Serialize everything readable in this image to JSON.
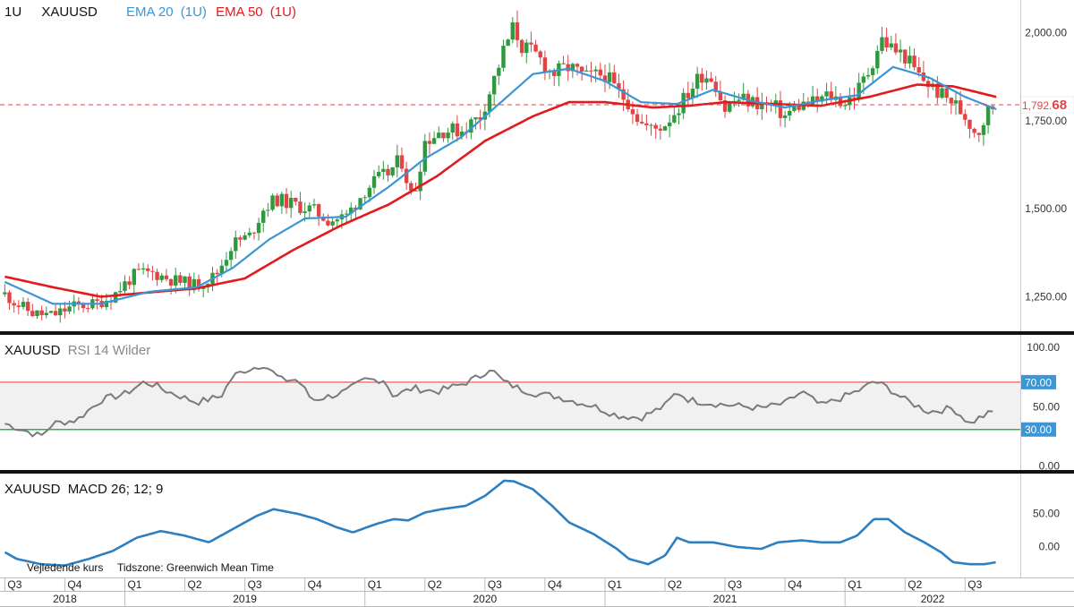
{
  "header": {
    "interval": "1U",
    "symbol": "XAUUSD",
    "ema20_label": "EMA 20",
    "ema20_interval": "(1U)",
    "ema50_label": "EMA 50",
    "ema50_interval": "(1U)"
  },
  "footer": {
    "price_note": "Vejledende kurs",
    "timezone_note": "Tidszone: Greenwich Mean Time"
  },
  "colors": {
    "up": "#2e9a3e",
    "down": "#e04444",
    "ema20": "#3a96d4",
    "ema50": "#e3191c",
    "rsi_line": "#7a7a7a",
    "rsi_overbought": "#e06060",
    "rsi_oversold": "#2bb24c",
    "macd_line": "#2e7fc0",
    "price_marker": "#e04444",
    "tag_blue": "#3a96d4"
  },
  "chart_data": [
    {
      "type": "candlestick",
      "name": "price",
      "title": "XAUUSD",
      "interval": "1U",
      "ylim": [
        1150,
        2090
      ],
      "yticks": [
        1250,
        1500,
        1750,
        2000
      ],
      "ytick_labels": [
        "1,250.00",
        "1,500.00",
        "1,750.00",
        "2,000.00"
      ],
      "last_price": 1792.68,
      "last_price_label_main": "1,792.",
      "last_price_label_frac": "68",
      "anchors": [
        [
          2018.5,
          1255
        ],
        [
          2018.55,
          1228
        ],
        [
          2018.62,
          1200
        ],
        [
          2018.7,
          1195
        ],
        [
          2018.78,
          1220
        ],
        [
          2018.88,
          1228
        ],
        [
          2018.95,
          1250
        ],
        [
          2019.0,
          1285
        ],
        [
          2019.05,
          1315
        ],
        [
          2019.12,
          1315
        ],
        [
          2019.2,
          1295
        ],
        [
          2019.3,
          1280
        ],
        [
          2019.38,
          1310
        ],
        [
          2019.45,
          1400
        ],
        [
          2019.52,
          1420
        ],
        [
          2019.58,
          1500
        ],
        [
          2019.63,
          1525
        ],
        [
          2019.7,
          1510
        ],
        [
          2019.78,
          1495
        ],
        [
          2019.85,
          1465
        ],
        [
          2019.92,
          1475
        ],
        [
          2020.0,
          1550
        ],
        [
          2020.05,
          1580
        ],
        [
          2020.1,
          1600
        ],
        [
          2020.15,
          1640
        ],
        [
          2020.2,
          1520
        ],
        [
          2020.25,
          1690
        ],
        [
          2020.32,
          1720
        ],
        [
          2020.4,
          1720
        ],
        [
          2020.48,
          1760
        ],
        [
          2020.52,
          1830
        ],
        [
          2020.58,
          1950
        ],
        [
          2020.62,
          2015
        ],
        [
          2020.65,
          1960
        ],
        [
          2020.72,
          1930
        ],
        [
          2020.78,
          1880
        ],
        [
          2020.85,
          1900
        ],
        [
          2020.92,
          1870
        ],
        [
          2021.0,
          1880
        ],
        [
          2021.05,
          1830
        ],
        [
          2021.1,
          1800
        ],
        [
          2021.15,
          1740
        ],
        [
          2021.2,
          1720
        ],
        [
          2021.25,
          1740
        ],
        [
          2021.3,
          1780
        ],
        [
          2021.35,
          1830
        ],
        [
          2021.4,
          1880
        ],
        [
          2021.45,
          1870
        ],
        [
          2021.5,
          1780
        ],
        [
          2021.55,
          1810
        ],
        [
          2021.62,
          1800
        ],
        [
          2021.7,
          1790
        ],
        [
          2021.75,
          1760
        ],
        [
          2021.8,
          1790
        ],
        [
          2021.88,
          1800
        ],
        [
          2021.93,
          1820
        ],
        [
          2022.0,
          1800
        ],
        [
          2022.05,
          1830
        ],
        [
          2022.1,
          1890
        ],
        [
          2022.15,
          1980
        ],
        [
          2022.2,
          1950
        ],
        [
          2022.25,
          1930
        ],
        [
          2022.3,
          1880
        ],
        [
          2022.35,
          1850
        ],
        [
          2022.4,
          1820
        ],
        [
          2022.45,
          1800
        ],
        [
          2022.5,
          1760
        ],
        [
          2022.55,
          1710
        ],
        [
          2022.6,
          1780
        ],
        [
          2022.63,
          1795
        ]
      ],
      "ema20_anchors": [
        [
          2018.5,
          1290
        ],
        [
          2018.7,
          1228
        ],
        [
          2018.9,
          1228
        ],
        [
          2019.1,
          1262
        ],
        [
          2019.3,
          1275
        ],
        [
          2019.45,
          1330
        ],
        [
          2019.6,
          1410
        ],
        [
          2019.75,
          1470
        ],
        [
          2019.92,
          1475
        ],
        [
          2020.1,
          1560
        ],
        [
          2020.25,
          1640
        ],
        [
          2020.4,
          1700
        ],
        [
          2020.55,
          1790
        ],
        [
          2020.7,
          1880
        ],
        [
          2020.85,
          1895
        ],
        [
          2021.0,
          1860
        ],
        [
          2021.15,
          1800
        ],
        [
          2021.3,
          1795
        ],
        [
          2021.45,
          1835
        ],
        [
          2021.6,
          1805
        ],
        [
          2021.75,
          1785
        ],
        [
          2021.9,
          1805
        ],
        [
          2022.05,
          1820
        ],
        [
          2022.2,
          1900
        ],
        [
          2022.35,
          1870
        ],
        [
          2022.5,
          1815
        ],
        [
          2022.63,
          1780
        ]
      ],
      "ema50_anchors": [
        [
          2018.5,
          1305
        ],
        [
          2018.7,
          1275
        ],
        [
          2018.9,
          1248
        ],
        [
          2019.1,
          1260
        ],
        [
          2019.3,
          1272
        ],
        [
          2019.5,
          1300
        ],
        [
          2019.7,
          1380
        ],
        [
          2019.9,
          1450
        ],
        [
          2020.1,
          1510
        ],
        [
          2020.3,
          1590
        ],
        [
          2020.5,
          1690
        ],
        [
          2020.7,
          1760
        ],
        [
          2020.85,
          1800
        ],
        [
          2021.0,
          1800
        ],
        [
          2021.2,
          1785
        ],
        [
          2021.35,
          1790
        ],
        [
          2021.5,
          1800
        ],
        [
          2021.7,
          1795
        ],
        [
          2021.9,
          1790
        ],
        [
          2022.1,
          1815
        ],
        [
          2022.3,
          1850
        ],
        [
          2022.45,
          1845
        ],
        [
          2022.63,
          1815
        ]
      ]
    },
    {
      "type": "line",
      "name": "rsi",
      "title": "XAUUSD",
      "subtitle": "RSI 14 Wilder",
      "ylim": [
        -5,
        110
      ],
      "yticks": [
        0,
        50,
        100
      ],
      "ytick_labels": [
        "0.00",
        "50.00",
        "100.00"
      ],
      "overbought": 70,
      "oversold": 30,
      "overbought_label": "70.00",
      "oversold_label": "30.00",
      "anchors": [
        [
          2018.5,
          35
        ],
        [
          2018.6,
          28
        ],
        [
          2018.65,
          24
        ],
        [
          2018.7,
          35
        ],
        [
          2018.8,
          38
        ],
        [
          2018.9,
          55
        ],
        [
          2019.0,
          60
        ],
        [
          2019.08,
          70
        ],
        [
          2019.12,
          68
        ],
        [
          2019.18,
          62
        ],
        [
          2019.3,
          53
        ],
        [
          2019.4,
          58
        ],
        [
          2019.45,
          75
        ],
        [
          2019.5,
          80
        ],
        [
          2019.58,
          85
        ],
        [
          2019.65,
          72
        ],
        [
          2019.72,
          72
        ],
        [
          2019.78,
          55
        ],
        [
          2019.85,
          58
        ],
        [
          2019.92,
          62
        ],
        [
          2020.0,
          72
        ],
        [
          2020.08,
          72
        ],
        [
          2020.12,
          58
        ],
        [
          2020.2,
          65
        ],
        [
          2020.3,
          62
        ],
        [
          2020.4,
          68
        ],
        [
          2020.48,
          75
        ],
        [
          2020.52,
          82
        ],
        [
          2020.58,
          70
        ],
        [
          2020.65,
          64
        ],
        [
          2020.72,
          60
        ],
        [
          2020.8,
          58
        ],
        [
          2020.85,
          55
        ],
        [
          2020.95,
          50
        ],
        [
          2021.05,
          42
        ],
        [
          2021.15,
          40
        ],
        [
          2021.25,
          50
        ],
        [
          2021.3,
          62
        ],
        [
          2021.35,
          55
        ],
        [
          2021.45,
          52
        ],
        [
          2021.55,
          50
        ],
        [
          2021.65,
          48
        ],
        [
          2021.75,
          52
        ],
        [
          2021.82,
          62
        ],
        [
          2021.9,
          50
        ],
        [
          2022.0,
          58
        ],
        [
          2022.08,
          65
        ],
        [
          2022.12,
          71
        ],
        [
          2022.18,
          65
        ],
        [
          2022.25,
          55
        ],
        [
          2022.35,
          45
        ],
        [
          2022.45,
          48
        ],
        [
          2022.52,
          35
        ],
        [
          2022.56,
          40
        ],
        [
          2022.63,
          46
        ]
      ]
    },
    {
      "type": "line",
      "name": "macd",
      "title": "XAUUSD",
      "subtitle": "MACD 26; 12; 9",
      "ylim": [
        -48,
        110
      ],
      "yticks": [
        0,
        50
      ],
      "ytick_labels": [
        "0.00",
        "50.00"
      ],
      "anchors": [
        [
          2018.5,
          -10
        ],
        [
          2018.55,
          -20
        ],
        [
          2018.65,
          -28
        ],
        [
          2018.75,
          -30
        ],
        [
          2018.85,
          -20
        ],
        [
          2018.95,
          -8
        ],
        [
          2019.05,
          12
        ],
        [
          2019.15,
          22
        ],
        [
          2019.25,
          15
        ],
        [
          2019.35,
          5
        ],
        [
          2019.45,
          25
        ],
        [
          2019.55,
          45
        ],
        [
          2019.62,
          55
        ],
        [
          2019.72,
          48
        ],
        [
          2019.8,
          40
        ],
        [
          2019.88,
          28
        ],
        [
          2019.95,
          20
        ],
        [
          2020.05,
          33
        ],
        [
          2020.12,
          40
        ],
        [
          2020.18,
          38
        ],
        [
          2020.25,
          50
        ],
        [
          2020.32,
          55
        ],
        [
          2020.42,
          60
        ],
        [
          2020.5,
          75
        ],
        [
          2020.58,
          98
        ],
        [
          2020.62,
          97
        ],
        [
          2020.7,
          85
        ],
        [
          2020.78,
          60
        ],
        [
          2020.85,
          35
        ],
        [
          2020.95,
          18
        ],
        [
          2021.05,
          -5
        ],
        [
          2021.1,
          -20
        ],
        [
          2021.18,
          -28
        ],
        [
          2021.25,
          -15
        ],
        [
          2021.3,
          12
        ],
        [
          2021.35,
          5
        ],
        [
          2021.45,
          5
        ],
        [
          2021.55,
          -2
        ],
        [
          2021.65,
          -5
        ],
        [
          2021.72,
          5
        ],
        [
          2021.82,
          8
        ],
        [
          2021.9,
          5
        ],
        [
          2021.98,
          5
        ],
        [
          2022.05,
          15
        ],
        [
          2022.12,
          40
        ],
        [
          2022.18,
          40
        ],
        [
          2022.25,
          20
        ],
        [
          2022.33,
          5
        ],
        [
          2022.4,
          -10
        ],
        [
          2022.45,
          -25
        ],
        [
          2022.52,
          -28
        ],
        [
          2022.58,
          -28
        ],
        [
          2022.63,
          -25
        ]
      ]
    }
  ],
  "time_axis": {
    "quarters": [
      {
        "label": "Q3",
        "t": 2018.5
      },
      {
        "label": "Q4",
        "t": 2018.75
      },
      {
        "label": "Q1",
        "t": 2019.0
      },
      {
        "label": "Q2",
        "t": 2019.25
      },
      {
        "label": "Q3",
        "t": 2019.5
      },
      {
        "label": "Q4",
        "t": 2019.75
      },
      {
        "label": "Q1",
        "t": 2020.0
      },
      {
        "label": "Q2",
        "t": 2020.25
      },
      {
        "label": "Q3",
        "t": 2020.5
      },
      {
        "label": "Q4",
        "t": 2020.75
      },
      {
        "label": "Q1",
        "t": 2021.0
      },
      {
        "label": "Q2",
        "t": 2021.25
      },
      {
        "label": "Q3",
        "t": 2021.5
      },
      {
        "label": "Q4",
        "t": 2021.75
      },
      {
        "label": "Q1",
        "t": 2022.0
      },
      {
        "label": "Q2",
        "t": 2022.25
      },
      {
        "label": "Q3",
        "t": 2022.5
      }
    ],
    "years": [
      {
        "label": "2018",
        "t": 2018.5
      },
      {
        "label": "2019",
        "t": 2019.0
      },
      {
        "label": "2020",
        "t": 2020.0
      },
      {
        "label": "2021",
        "t": 2021.0
      },
      {
        "label": "2022",
        "t": 2022.0
      }
    ]
  }
}
